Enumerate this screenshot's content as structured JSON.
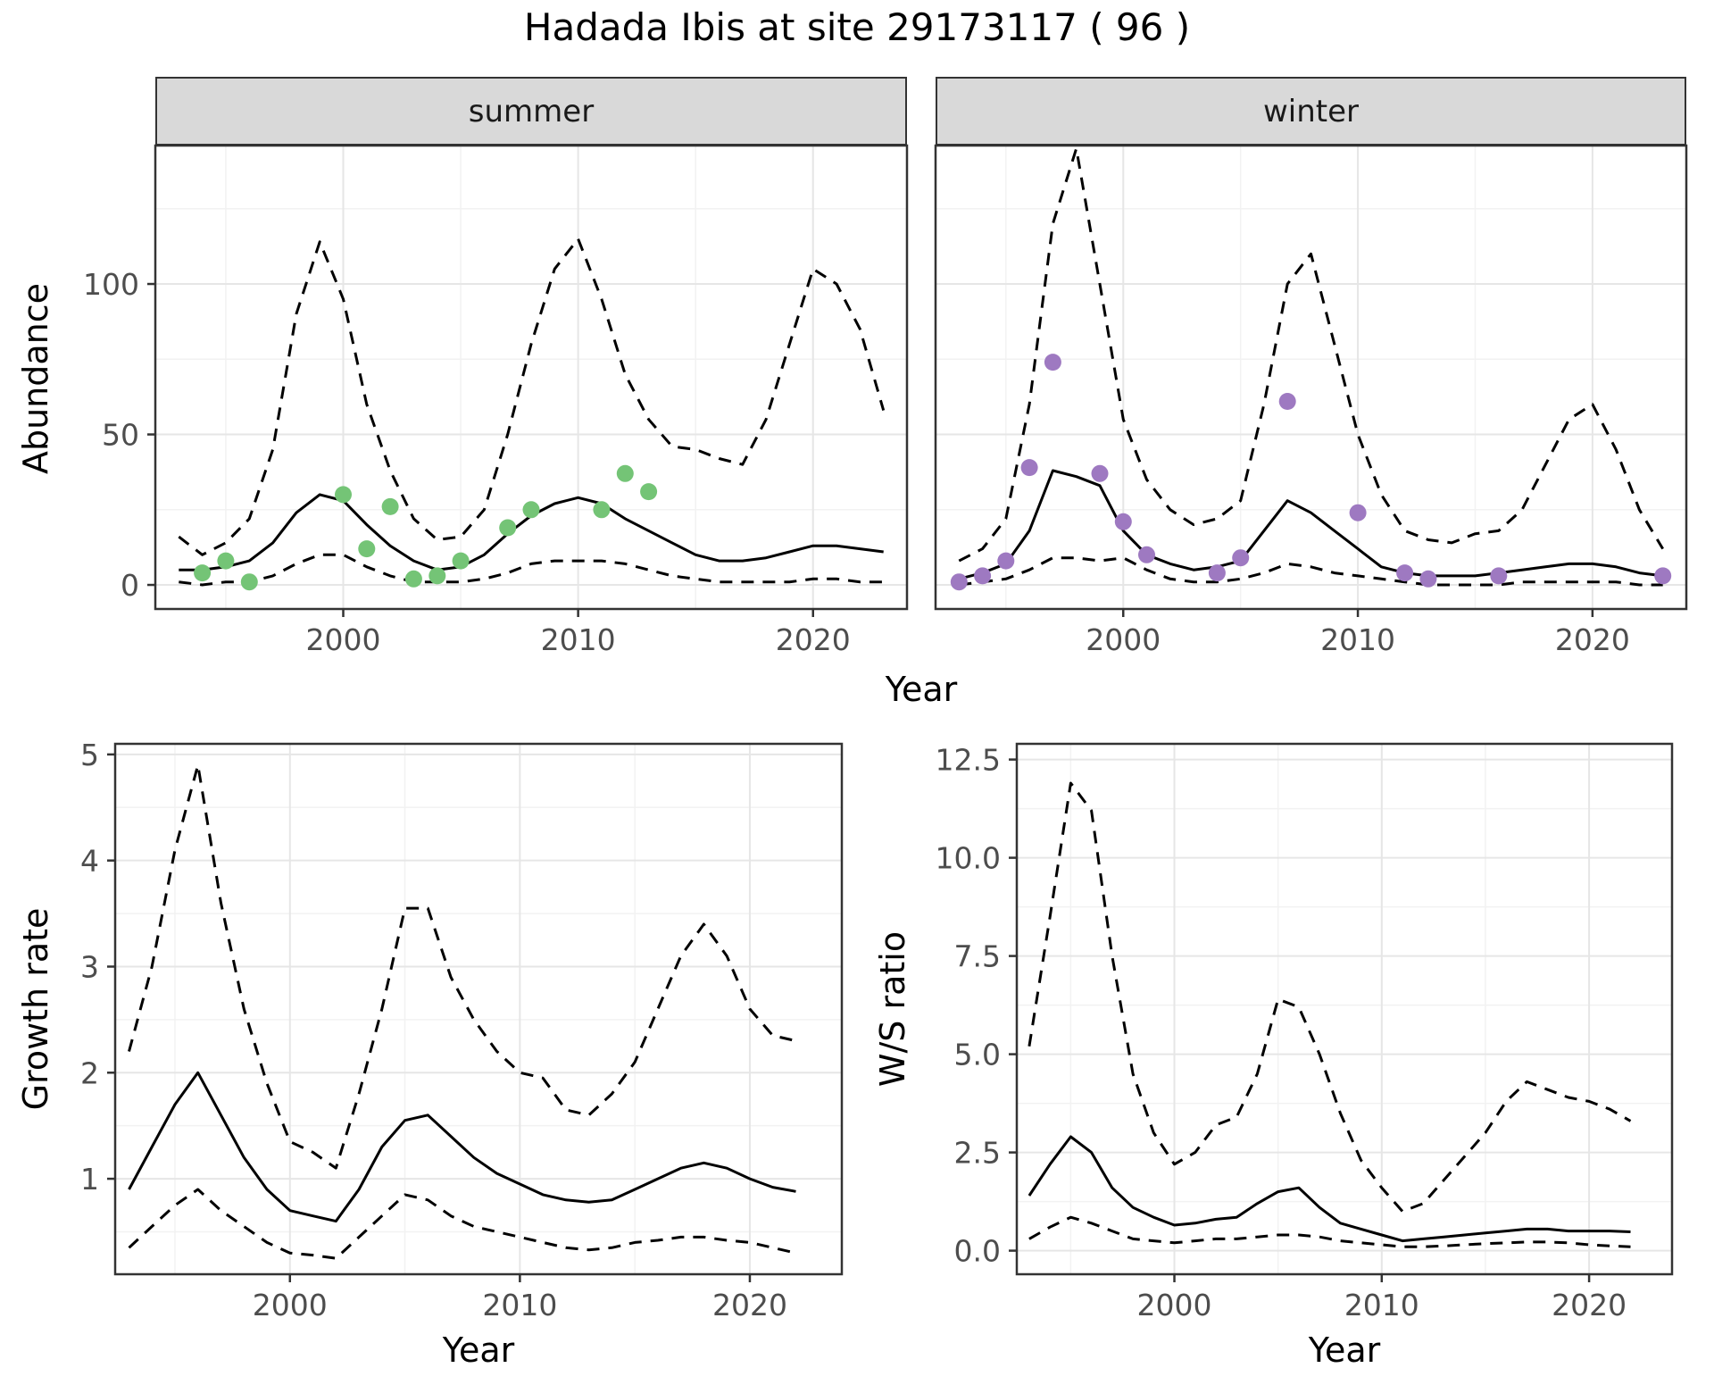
{
  "title": "Hadada Ibis at site 29173117 ( 96 )",
  "axes": {
    "abundance_ylabel": "Abundance",
    "year_xlabel_top": "Year",
    "growth_ylabel": "Growth rate",
    "growth_xlabel": "Year",
    "ws_ylabel": "W/S ratio",
    "ws_xlabel": "Year"
  },
  "facets": {
    "summer": "summer",
    "winter": "winter"
  },
  "colors": {
    "line": "#000000",
    "summer_points": "#74c476",
    "winter_points": "#9e79c1",
    "grid_major": "#e6e6e6",
    "grid_minor": "#f2f2f2",
    "panel_border": "#333333",
    "tick_text": "#4d4d4d",
    "strip_bg": "#d9d9d9"
  },
  "chart_data": [
    {
      "id": "abundance-summer",
      "type": "line",
      "title": "summer",
      "xlabel": "Year",
      "ylabel": "Abundance",
      "xlim": [
        1992,
        2024
      ],
      "ylim": [
        -8,
        146
      ],
      "x_ticks": {
        "values": [
          2000,
          2010,
          2020
        ],
        "labels": [
          "2000",
          "2010",
          "2020"
        ]
      },
      "y_ticks": {
        "values": [
          0,
          50,
          100
        ],
        "labels": [
          "0",
          "50",
          "100"
        ],
        "show": true
      },
      "years": [
        1993,
        1994,
        1995,
        1996,
        1997,
        1998,
        1999,
        2000,
        2001,
        2002,
        2003,
        2004,
        2005,
        2006,
        2007,
        2008,
        2009,
        2010,
        2011,
        2012,
        2013,
        2014,
        2015,
        2016,
        2017,
        2018,
        2019,
        2020,
        2021,
        2022,
        2023
      ],
      "series": [
        {
          "name": "upper-credible",
          "style": "dashed",
          "values": [
            16,
            10,
            14,
            22,
            45,
            90,
            114,
            95,
            60,
            38,
            22,
            15,
            16,
            25,
            50,
            80,
            105,
            115,
            95,
            70,
            55,
            46,
            45,
            42,
            40,
            55,
            80,
            105,
            100,
            85,
            58
          ]
        },
        {
          "name": "median",
          "style": "solid",
          "values": [
            5,
            5,
            6,
            8,
            14,
            24,
            30,
            28,
            20,
            13,
            8,
            5,
            6,
            10,
            17,
            23,
            27,
            29,
            27,
            22,
            18,
            14,
            10,
            8,
            8,
            9,
            11,
            13,
            13,
            12,
            11
          ]
        },
        {
          "name": "lower-credible",
          "style": "dashed",
          "values": [
            1,
            0,
            1,
            1,
            3,
            7,
            10,
            10,
            6,
            3,
            1,
            1,
            1,
            2,
            4,
            7,
            8,
            8,
            8,
            7,
            5,
            3,
            2,
            1,
            1,
            1,
            1,
            2,
            2,
            1,
            1
          ]
        }
      ],
      "points": {
        "name": "observed-counts-summer",
        "color": "#74c476",
        "x": [
          1994,
          1995,
          1996,
          2000,
          2001,
          2002,
          2003,
          2004,
          2005,
          2007,
          2008,
          2011,
          2012,
          2013
        ],
        "y": [
          4,
          8,
          1,
          30,
          12,
          26,
          2,
          3,
          8,
          19,
          25,
          25,
          37,
          31
        ]
      }
    },
    {
      "id": "abundance-winter",
      "type": "line",
      "title": "winter",
      "xlabel": "Year",
      "ylabel": "Abundance",
      "xlim": [
        1992,
        2024
      ],
      "ylim": [
        -8,
        146
      ],
      "x_ticks": {
        "values": [
          2000,
          2010,
          2020
        ],
        "labels": [
          "2000",
          "2010",
          "2020"
        ]
      },
      "y_ticks": {
        "values": [
          0,
          50,
          100
        ],
        "labels": [
          "0",
          "50",
          "100"
        ],
        "show": false
      },
      "years": [
        1993,
        1994,
        1995,
        1996,
        1997,
        1998,
        1999,
        2000,
        2001,
        2002,
        2003,
        2004,
        2005,
        2006,
        2007,
        2008,
        2009,
        2010,
        2011,
        2012,
        2013,
        2014,
        2015,
        2016,
        2017,
        2018,
        2019,
        2020,
        2021,
        2022,
        2023
      ],
      "series": [
        {
          "name": "upper-credible",
          "style": "dashed",
          "values": [
            8,
            12,
            22,
            60,
            120,
            145,
            100,
            55,
            35,
            25,
            20,
            22,
            28,
            60,
            100,
            110,
            80,
            50,
            30,
            18,
            15,
            14,
            17,
            18,
            25,
            40,
            55,
            60,
            45,
            25,
            12
          ]
        },
        {
          "name": "median",
          "style": "solid",
          "values": [
            2,
            4,
            7,
            18,
            38,
            36,
            33,
            18,
            10,
            7,
            5,
            6,
            8,
            18,
            28,
            24,
            18,
            12,
            6,
            4,
            3,
            3,
            3,
            4,
            5,
            6,
            7,
            7,
            6,
            4,
            3
          ]
        },
        {
          "name": "lower-credible",
          "style": "dashed",
          "values": [
            0,
            1,
            2,
            5,
            9,
            9,
            8,
            9,
            5,
            2,
            1,
            1,
            2,
            4,
            7,
            6,
            4,
            3,
            2,
            1,
            0,
            0,
            0,
            0,
            1,
            1,
            1,
            1,
            1,
            0,
            0
          ]
        }
      ],
      "points": {
        "name": "observed-counts-winter",
        "color": "#9e79c1",
        "x": [
          1993,
          1994,
          1995,
          1996,
          1997,
          1999,
          2000,
          2001,
          2004,
          2005,
          2007,
          2010,
          2012,
          2013,
          2016,
          2023
        ],
        "y": [
          1,
          3,
          8,
          39,
          74,
          37,
          21,
          10,
          4,
          9,
          61,
          24,
          4,
          2,
          3,
          3
        ]
      }
    },
    {
      "id": "growth-rate",
      "type": "line",
      "title": "",
      "xlabel": "Year",
      "ylabel": "Growth rate",
      "xlim": [
        1992.4,
        2024
      ],
      "ylim": [
        0.1,
        5.1
      ],
      "x_ticks": {
        "values": [
          2000,
          2010,
          2020
        ],
        "labels": [
          "2000",
          "2010",
          "2020"
        ]
      },
      "y_ticks": {
        "values": [
          1,
          2,
          3,
          4,
          5
        ],
        "labels": [
          "1",
          "2",
          "3",
          "4",
          "5"
        ],
        "show": true
      },
      "years": [
        1993,
        1994,
        1995,
        1996,
        1997,
        1998,
        1999,
        2000,
        2001,
        2002,
        2003,
        2004,
        2005,
        2006,
        2007,
        2008,
        2009,
        2010,
        2011,
        2012,
        2013,
        2014,
        2015,
        2016,
        2017,
        2018,
        2019,
        2020,
        2021,
        2022
      ],
      "series": [
        {
          "name": "upper-credible",
          "style": "dashed",
          "values": [
            2.2,
            3.0,
            4.1,
            4.9,
            3.6,
            2.6,
            1.9,
            1.35,
            1.25,
            1.1,
            1.8,
            2.6,
            3.55,
            3.55,
            2.9,
            2.5,
            2.2,
            2.0,
            1.95,
            1.65,
            1.6,
            1.8,
            2.1,
            2.6,
            3.1,
            3.4,
            3.1,
            2.6,
            2.35,
            2.3
          ]
        },
        {
          "name": "median",
          "style": "solid",
          "values": [
            0.9,
            1.3,
            1.7,
            2.0,
            1.6,
            1.2,
            0.9,
            0.7,
            0.65,
            0.6,
            0.9,
            1.3,
            1.55,
            1.6,
            1.4,
            1.2,
            1.05,
            0.95,
            0.85,
            0.8,
            0.78,
            0.8,
            0.9,
            1.0,
            1.1,
            1.15,
            1.1,
            1.0,
            0.92,
            0.88
          ]
        },
        {
          "name": "lower-credible",
          "style": "dashed",
          "values": [
            0.35,
            0.55,
            0.75,
            0.9,
            0.7,
            0.55,
            0.4,
            0.3,
            0.28,
            0.25,
            0.45,
            0.65,
            0.85,
            0.8,
            0.65,
            0.55,
            0.5,
            0.45,
            0.4,
            0.35,
            0.33,
            0.35,
            0.4,
            0.42,
            0.45,
            0.45,
            0.42,
            0.4,
            0.35,
            0.3
          ]
        }
      ]
    },
    {
      "id": "ws-ratio",
      "type": "line",
      "title": "",
      "xlabel": "Year",
      "ylabel": "W/S ratio",
      "xlim": [
        1992.4,
        2024
      ],
      "ylim": [
        -0.6,
        12.9
      ],
      "x_ticks": {
        "values": [
          2000,
          2010,
          2020
        ],
        "labels": [
          "2000",
          "2010",
          "2020"
        ]
      },
      "y_ticks": {
        "values": [
          0,
          2.5,
          5,
          7.5,
          10,
          12.5
        ],
        "labels": [
          "0.0",
          "2.5",
          "5.0",
          "7.5",
          "10.0",
          "12.5"
        ],
        "show": true
      },
      "years": [
        1993,
        1994,
        1995,
        1996,
        1997,
        1998,
        1999,
        2000,
        2001,
        2002,
        2003,
        2004,
        2005,
        2006,
        2007,
        2008,
        2009,
        2010,
        2011,
        2012,
        2013,
        2014,
        2015,
        2016,
        2017,
        2018,
        2019,
        2020,
        2021,
        2022
      ],
      "series": [
        {
          "name": "upper-credible",
          "style": "dashed",
          "values": [
            5.2,
            8.5,
            11.9,
            11.2,
            7.5,
            4.5,
            3.0,
            2.2,
            2.5,
            3.2,
            3.4,
            4.5,
            6.4,
            6.2,
            5.0,
            3.5,
            2.3,
            1.6,
            1.0,
            1.2,
            1.8,
            2.4,
            3.0,
            3.8,
            4.3,
            4.1,
            3.9,
            3.8,
            3.6,
            3.3
          ]
        },
        {
          "name": "median",
          "style": "solid",
          "values": [
            1.4,
            2.2,
            2.9,
            2.5,
            1.6,
            1.1,
            0.85,
            0.65,
            0.7,
            0.8,
            0.85,
            1.2,
            1.5,
            1.6,
            1.1,
            0.7,
            0.55,
            0.4,
            0.25,
            0.3,
            0.35,
            0.4,
            0.45,
            0.5,
            0.55,
            0.55,
            0.5,
            0.5,
            0.5,
            0.48
          ]
        },
        {
          "name": "lower-credible",
          "style": "dashed",
          "values": [
            0.3,
            0.6,
            0.85,
            0.7,
            0.5,
            0.3,
            0.25,
            0.2,
            0.25,
            0.3,
            0.3,
            0.35,
            0.4,
            0.4,
            0.35,
            0.25,
            0.2,
            0.15,
            0.1,
            0.1,
            0.12,
            0.15,
            0.18,
            0.2,
            0.22,
            0.22,
            0.2,
            0.15,
            0.12,
            0.1
          ]
        }
      ]
    }
  ]
}
